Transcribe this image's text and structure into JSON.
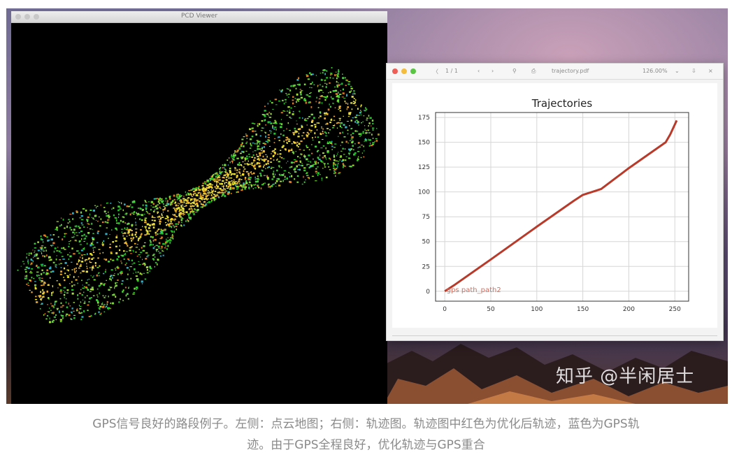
{
  "pcl_window": {
    "title": "PCD Viewer",
    "footer": ""
  },
  "pdf_window": {
    "filename": "trajectory.pdf",
    "zoom": "126.00%",
    "page_nav": "1 / 1",
    "chart_data": {
      "type": "line",
      "title": "Trajectories",
      "xlabel": "",
      "ylabel": "",
      "xlim": [
        -10,
        265
      ],
      "ylim": [
        -10,
        180
      ],
      "xticks": [
        0,
        50,
        100,
        150,
        200,
        250
      ],
      "yticks": [
        0,
        25,
        50,
        75,
        100,
        125,
        150,
        175
      ],
      "grid": true,
      "legend_text": "gps path_path2",
      "series": [
        {
          "color": "#b83a2a",
          "x": [
            0,
            10,
            50,
            100,
            140,
            150,
            160,
            170,
            200,
            240,
            245,
            252
          ],
          "y": [
            0,
            6,
            32,
            65,
            91,
            97,
            100,
            103,
            124,
            150,
            158,
            172
          ]
        }
      ]
    }
  },
  "watermark": "知乎 @半闲居士",
  "caption": {
    "line1": "GPS信号良好的路段例子。左侧：点云地图；右侧：轨迹图。轨迹图中红色为优化后轨迹，蓝色为GPS轨",
    "line2": "迹。由于GPS全程良好，优化轨迹与GPS重合"
  },
  "colors": {
    "traffic_red": "#ee5e56",
    "traffic_yellow": "#f4bd3d",
    "traffic_green": "#5ac542",
    "trajectory": "#b83a2a"
  }
}
